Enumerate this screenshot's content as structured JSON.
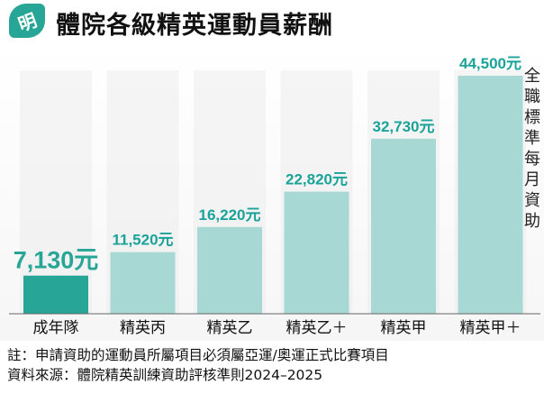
{
  "header": {
    "logo_char": "明",
    "title": "體院各級精英運動員薪酬"
  },
  "chart_data": {
    "type": "bar",
    "title": "體院各級精英運動員薪酬",
    "categories": [
      "成年隊",
      "精英丙",
      "精英乙",
      "精英乙＋",
      "精英甲",
      "精英甲＋"
    ],
    "values": [
      7130,
      11520,
      16220,
      22820,
      32730,
      44500
    ],
    "value_labels": [
      "7,130元",
      "11,520元",
      "16,220元",
      "22,820元",
      "32,730元",
      "44,500元"
    ],
    "ylabel": "全職標準每月資助",
    "ylim": [
      0,
      44500
    ],
    "grid": false,
    "colors": {
      "highlight": "#27a596",
      "bar": "#a8d8d3",
      "label": "#1aa399",
      "column_bg": "#ececec"
    }
  },
  "footer": {
    "note": "註：申請資助的運動員所屬項目必須屬亞運/奧運正式比賽項目",
    "source": "資料來源：體院精英訓練資助評核準則2024–2025"
  }
}
